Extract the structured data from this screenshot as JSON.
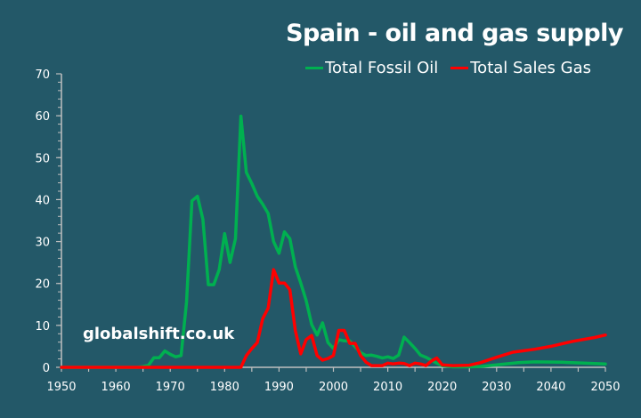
{
  "chart_data": {
    "type": "line",
    "title": "Spain - oil and gas supply",
    "xlabel": "",
    "ylabel": "",
    "xlim": [
      1950,
      2050
    ],
    "ylim": [
      0,
      70
    ],
    "x_ticks": [
      "1950",
      "1960",
      "1970",
      "1980",
      "1990",
      "2000",
      "2010",
      "2020",
      "2030",
      "2040",
      "2050"
    ],
    "y_ticks": [
      "0",
      "10",
      "20",
      "30",
      "40",
      "50",
      "60",
      "70"
    ],
    "grid": false,
    "legend_position": "top-right",
    "annotation": "globalshift.co.uk",
    "series": [
      {
        "name": "Total Fossil Oil",
        "color": "#00B050",
        "x": [
          1950,
          1964,
          1965,
          1966,
          1967,
          1968,
          1969,
          1970,
          1971,
          1972,
          1973,
          1974,
          1975,
          1976,
          1977,
          1978,
          1979,
          1980,
          1981,
          1982,
          1983,
          1984,
          1985,
          1986,
          1987,
          1988,
          1989,
          1990,
          1991,
          1992,
          1993,
          1994,
          1995,
          1996,
          1997,
          1998,
          1999,
          2000,
          2001,
          2002,
          2003,
          2004,
          2005,
          2006,
          2007,
          2008,
          2009,
          2010,
          2011,
          2012,
          2013,
          2014,
          2015,
          2016,
          2017,
          2018,
          2019,
          2020,
          2022,
          2025,
          2027,
          2030,
          2034,
          2037,
          2042,
          2046,
          2050
        ],
        "values": [
          0,
          0,
          0.2,
          0.5,
          2.3,
          2.3,
          3.9,
          3.1,
          2.5,
          2.8,
          15.5,
          39.7,
          40.8,
          35.3,
          19.7,
          19.7,
          23.3,
          31.9,
          25.0,
          30.7,
          59.9,
          46.5,
          43.8,
          40.8,
          38.9,
          36.7,
          30.0,
          27.2,
          32.3,
          30.7,
          24.0,
          20.1,
          15.9,
          10.2,
          7.7,
          10.6,
          5.9,
          4.5,
          6.6,
          6.3,
          6.3,
          4.9,
          3.5,
          2.8,
          2.9,
          2.6,
          2.2,
          2.5,
          2.1,
          2.9,
          7.2,
          5.9,
          4.5,
          2.9,
          2.4,
          1.7,
          1.0,
          0.4,
          0.1,
          0.1,
          0.2,
          0.6,
          1.1,
          1.3,
          1.2,
          1.0,
          0.8
        ]
      },
      {
        "name": "Total Sales Gas",
        "color": "#FF0000",
        "x": [
          1950,
          1983,
          1984,
          1985,
          1986,
          1987,
          1988,
          1989,
          1990,
          1991,
          1992,
          1993,
          1994,
          1995,
          1996,
          1997,
          1998,
          1999,
          2000,
          2001,
          2002,
          2003,
          2004,
          2005,
          2006,
          2007,
          2008,
          2009,
          2010,
          2011,
          2012,
          2013,
          2014,
          2015,
          2016,
          2017,
          2018,
          2019,
          2020,
          2022,
          2025,
          2027,
          2030,
          2033,
          2037,
          2040,
          2044,
          2048,
          2050
        ],
        "values": [
          0,
          0,
          2.8,
          4.5,
          5.9,
          11.6,
          14.1,
          23.3,
          20.1,
          20.1,
          18.5,
          8.8,
          3.2,
          6.6,
          7.6,
          2.8,
          1.7,
          2.1,
          2.8,
          8.8,
          8.8,
          5.7,
          5.7,
          2.8,
          1.2,
          0.4,
          0.4,
          0.4,
          1.0,
          0.8,
          1.0,
          0.9,
          0.4,
          1.0,
          0.8,
          0.4,
          1.5,
          2.2,
          0.6,
          0.4,
          0.5,
          1.1,
          2.4,
          3.6,
          4.3,
          5.0,
          6.2,
          7.1,
          7.7
        ]
      }
    ]
  }
}
